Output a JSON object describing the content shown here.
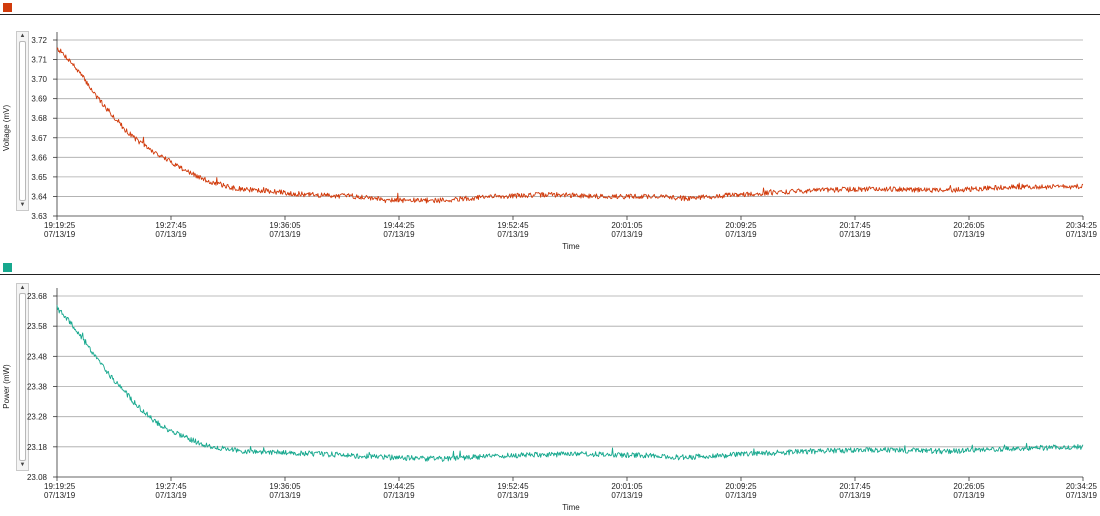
{
  "colors": {
    "voltage": "#d13b0c",
    "power": "#17a88e",
    "grid": "#a8a8a8",
    "axis": "#333333"
  },
  "scroll_arrows": {
    "up": "▲",
    "down": "▼"
  },
  "chart_data": [
    {
      "type": "line",
      "title": "",
      "xlabel": "Time",
      "ylabel": "Voltage (mV)",
      "ylim": [
        3.63,
        3.72
      ],
      "yticks": [
        "3.72",
        "3.71",
        "3.70",
        "3.69",
        "3.68",
        "3.67",
        "3.66",
        "3.65",
        "3.64",
        "3.63"
      ],
      "xticks": [
        {
          "time": "19:19:25",
          "date": "07/13/19"
        },
        {
          "time": "19:27:45",
          "date": "07/13/19"
        },
        {
          "time": "19:36:05",
          "date": "07/13/19"
        },
        {
          "time": "19:44:25",
          "date": "07/13/19"
        },
        {
          "time": "19:52:45",
          "date": "07/13/19"
        },
        {
          "time": "20:01:05",
          "date": "07/13/19"
        },
        {
          "time": "20:09:25",
          "date": "07/13/19"
        },
        {
          "time": "20:17:45",
          "date": "07/13/19"
        },
        {
          "time": "20:26:05",
          "date": "07/13/19"
        },
        {
          "time": "20:34:25",
          "date": "07/13/19"
        }
      ],
      "x_minutes_range": [
        0,
        75
      ],
      "series": [
        {
          "name": "Voltage (mV)",
          "noise": 0.0013,
          "points": [
            [
              0,
              3.716
            ],
            [
              1,
              3.709
            ],
            [
              2,
              3.7
            ],
            [
              3,
              3.69
            ],
            [
              4,
              3.682
            ],
            [
              5,
              3.674
            ],
            [
              6,
              3.668
            ],
            [
              7,
              3.663
            ],
            [
              8,
              3.659
            ],
            [
              9,
              3.655
            ],
            [
              10,
              3.651
            ],
            [
              11,
              3.648
            ],
            [
              12,
              3.646
            ],
            [
              13,
              3.644
            ],
            [
              15,
              3.643
            ],
            [
              18,
              3.641
            ],
            [
              22,
              3.64
            ],
            [
              25,
              3.638
            ],
            [
              28,
              3.638
            ],
            [
              32,
              3.64
            ],
            [
              36,
              3.641
            ],
            [
              40,
              3.64
            ],
            [
              44,
              3.64
            ],
            [
              46,
              3.639
            ],
            [
              50,
              3.641
            ],
            [
              55,
              3.643
            ],
            [
              60,
              3.644
            ],
            [
              65,
              3.643
            ],
            [
              70,
              3.645
            ],
            [
              75,
              3.645
            ]
          ]
        }
      ]
    },
    {
      "type": "line",
      "title": "",
      "xlabel": "Time",
      "ylabel": "Power (mW)",
      "ylim": [
        23.08,
        23.68
      ],
      "yticks": [
        "23.68",
        "23.58",
        "23.48",
        "23.38",
        "23.28",
        "23.18",
        "23.08"
      ],
      "xticks": [
        {
          "time": "19:19:25",
          "date": "07/13/19"
        },
        {
          "time": "19:27:45",
          "date": "07/13/19"
        },
        {
          "time": "19:36:05",
          "date": "07/13/19"
        },
        {
          "time": "19:44:25",
          "date": "07/13/19"
        },
        {
          "time": "19:52:45",
          "date": "07/13/19"
        },
        {
          "time": "20:01:05",
          "date": "07/13/19"
        },
        {
          "time": "20:09:25",
          "date": "07/13/19"
        },
        {
          "time": "20:17:45",
          "date": "07/13/19"
        },
        {
          "time": "20:26:05",
          "date": "07/13/19"
        },
        {
          "time": "20:34:25",
          "date": "07/13/19"
        }
      ],
      "x_minutes_range": [
        0,
        75
      ],
      "series": [
        {
          "name": "Power (mW)",
          "noise": 0.009,
          "points": [
            [
              0,
              23.64
            ],
            [
              1,
              23.59
            ],
            [
              2,
              23.53
            ],
            [
              3,
              23.47
            ],
            [
              4,
              23.41
            ],
            [
              5,
              23.36
            ],
            [
              6,
              23.31
            ],
            [
              7,
              23.27
            ],
            [
              8,
              23.24
            ],
            [
              9,
              23.22
            ],
            [
              10,
              23.2
            ],
            [
              11,
              23.185
            ],
            [
              12,
              23.175
            ],
            [
              14,
              23.165
            ],
            [
              17,
              23.16
            ],
            [
              20,
              23.155
            ],
            [
              24,
              23.145
            ],
            [
              28,
              23.14
            ],
            [
              32,
              23.15
            ],
            [
              36,
              23.155
            ],
            [
              40,
              23.155
            ],
            [
              44,
              23.15
            ],
            [
              46,
              23.145
            ],
            [
              50,
              23.155
            ],
            [
              55,
              23.165
            ],
            [
              60,
              23.17
            ],
            [
              65,
              23.165
            ],
            [
              70,
              23.175
            ],
            [
              75,
              23.18
            ]
          ]
        }
      ]
    }
  ]
}
